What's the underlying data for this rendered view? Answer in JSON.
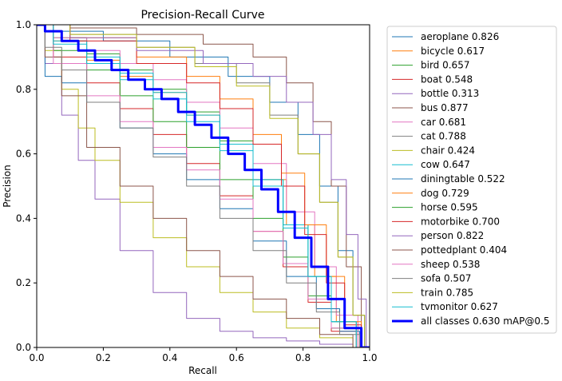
{
  "chart_data": {
    "type": "line",
    "title": "Precision-Recall Curve",
    "xlabel": "Recall",
    "ylabel": "Precision",
    "xlim": [
      0.0,
      1.0
    ],
    "ylim": [
      0.0,
      1.0
    ],
    "xticks": [
      "0.0",
      "0.2",
      "0.4",
      "0.6",
      "0.8",
      "1.0"
    ],
    "yticks": [
      "0.0",
      "0.2",
      "0.4",
      "0.6",
      "0.8",
      "1.0"
    ],
    "grid": false,
    "legend_position": "outside-right",
    "series": [
      {
        "name": "aeroplane 0.826",
        "color": "#1f77b4",
        "x": [
          0,
          0.1,
          0.3,
          0.5,
          0.65,
          0.75,
          0.82,
          0.88,
          0.93,
          0.97,
          1.0
        ],
        "y": [
          1.0,
          0.98,
          0.95,
          0.9,
          0.84,
          0.76,
          0.66,
          0.5,
          0.3,
          0.1,
          0
        ]
      },
      {
        "name": "bicycle 0.617",
        "color": "#ff7f0e",
        "x": [
          0,
          0.1,
          0.2,
          0.3,
          0.4,
          0.5,
          0.6,
          0.7,
          0.8,
          0.87,
          0.93,
          1.0
        ],
        "y": [
          1.0,
          0.95,
          0.89,
          0.84,
          0.79,
          0.72,
          0.63,
          0.52,
          0.38,
          0.22,
          0.08,
          0
        ]
      },
      {
        "name": "bird 0.657",
        "color": "#2ca02c",
        "x": [
          0,
          0.1,
          0.2,
          0.3,
          0.4,
          0.5,
          0.6,
          0.7,
          0.78,
          0.85,
          0.92,
          1.0
        ],
        "y": [
          1.0,
          0.96,
          0.91,
          0.86,
          0.8,
          0.73,
          0.64,
          0.52,
          0.38,
          0.22,
          0.08,
          0
        ]
      },
      {
        "name": "boat 0.548",
        "color": "#d62728",
        "x": [
          0,
          0.1,
          0.2,
          0.3,
          0.4,
          0.5,
          0.6,
          0.7,
          0.78,
          0.85,
          0.92,
          1.0
        ],
        "y": [
          1.0,
          0.9,
          0.82,
          0.74,
          0.66,
          0.57,
          0.47,
          0.36,
          0.25,
          0.14,
          0.05,
          0
        ]
      },
      {
        "name": "bottle 0.313",
        "color": "#9467bd",
        "x": [
          0,
          0.05,
          0.1,
          0.15,
          0.2,
          0.3,
          0.4,
          0.5,
          0.6,
          0.7,
          0.8,
          0.9,
          1.0
        ],
        "y": [
          1.0,
          0.88,
          0.72,
          0.58,
          0.46,
          0.3,
          0.17,
          0.09,
          0.05,
          0.03,
          0.02,
          0.01,
          0
        ]
      },
      {
        "name": "bus 0.877",
        "color": "#8c564b",
        "x": [
          0,
          0.2,
          0.4,
          0.6,
          0.7,
          0.8,
          0.86,
          0.91,
          0.95,
          1.0
        ],
        "y": [
          1.0,
          0.99,
          0.97,
          0.94,
          0.9,
          0.82,
          0.7,
          0.5,
          0.25,
          0
        ]
      },
      {
        "name": "car 0.681",
        "color": "#e377c2",
        "x": [
          0,
          0.1,
          0.2,
          0.3,
          0.4,
          0.5,
          0.6,
          0.7,
          0.8,
          0.87,
          0.93,
          1.0
        ],
        "y": [
          1.0,
          0.96,
          0.92,
          0.88,
          0.83,
          0.76,
          0.68,
          0.57,
          0.42,
          0.25,
          0.1,
          0
        ]
      },
      {
        "name": "cat 0.788",
        "color": "#7f7f7f",
        "x": [
          0,
          0.2,
          0.4,
          0.55,
          0.65,
          0.75,
          0.82,
          0.88,
          0.93,
          0.97,
          1.0
        ],
        "y": [
          1.0,
          0.97,
          0.93,
          0.88,
          0.82,
          0.72,
          0.6,
          0.45,
          0.28,
          0.1,
          0
        ]
      },
      {
        "name": "chair 0.424",
        "color": "#bcbd22",
        "x": [
          0,
          0.05,
          0.1,
          0.15,
          0.2,
          0.3,
          0.4,
          0.5,
          0.6,
          0.7,
          0.8,
          0.9,
          1.0
        ],
        "y": [
          1.0,
          0.92,
          0.8,
          0.68,
          0.58,
          0.45,
          0.34,
          0.25,
          0.17,
          0.11,
          0.06,
          0.03,
          0
        ]
      },
      {
        "name": "cow 0.647",
        "color": "#17becf",
        "x": [
          0,
          0.1,
          0.2,
          0.3,
          0.4,
          0.5,
          0.6,
          0.7,
          0.78,
          0.85,
          0.92,
          1.0
        ],
        "y": [
          1.0,
          0.95,
          0.9,
          0.85,
          0.79,
          0.72,
          0.63,
          0.52,
          0.38,
          0.22,
          0.08,
          0
        ]
      },
      {
        "name": "diningtable 0.522",
        "color": "#1f77b4",
        "x": [
          0,
          0.05,
          0.1,
          0.2,
          0.3,
          0.4,
          0.5,
          0.6,
          0.7,
          0.8,
          0.88,
          0.94,
          1.0
        ],
        "y": [
          1.0,
          0.84,
          0.82,
          0.76,
          0.68,
          0.6,
          0.52,
          0.43,
          0.33,
          0.22,
          0.12,
          0.05,
          0
        ]
      },
      {
        "name": "dog 0.729",
        "color": "#ff7f0e",
        "x": [
          0,
          0.2,
          0.4,
          0.5,
          0.6,
          0.7,
          0.77,
          0.84,
          0.9,
          0.95,
          1.0
        ],
        "y": [
          1.0,
          0.96,
          0.9,
          0.84,
          0.77,
          0.66,
          0.54,
          0.38,
          0.22,
          0.08,
          0
        ]
      },
      {
        "name": "horse 0.595",
        "color": "#2ca02c",
        "x": [
          0,
          0.1,
          0.2,
          0.3,
          0.4,
          0.5,
          0.6,
          0.7,
          0.78,
          0.85,
          0.92,
          1.0
        ],
        "y": [
          1.0,
          0.92,
          0.86,
          0.78,
          0.7,
          0.62,
          0.52,
          0.4,
          0.28,
          0.16,
          0.06,
          0
        ]
      },
      {
        "name": "motorbike 0.700",
        "color": "#d62728",
        "x": [
          0,
          0.2,
          0.4,
          0.5,
          0.6,
          0.7,
          0.77,
          0.84,
          0.9,
          0.95,
          1.0
        ],
        "y": [
          1.0,
          0.95,
          0.88,
          0.82,
          0.74,
          0.63,
          0.5,
          0.35,
          0.2,
          0.07,
          0
        ]
      },
      {
        "name": "person 0.822",
        "color": "#9467bd",
        "x": [
          0,
          0.2,
          0.4,
          0.6,
          0.7,
          0.8,
          0.86,
          0.91,
          0.95,
          0.98,
          1.0
        ],
        "y": [
          1.0,
          0.96,
          0.92,
          0.88,
          0.84,
          0.76,
          0.66,
          0.52,
          0.35,
          0.15,
          0
        ]
      },
      {
        "name": "pottedplant 0.404",
        "color": "#8c564b",
        "x": [
          0,
          0.05,
          0.1,
          0.2,
          0.3,
          0.4,
          0.5,
          0.6,
          0.7,
          0.8,
          0.9,
          1.0
        ],
        "y": [
          1.0,
          0.9,
          0.78,
          0.62,
          0.5,
          0.4,
          0.3,
          0.22,
          0.15,
          0.09,
          0.04,
          0
        ]
      },
      {
        "name": "sheep 0.538",
        "color": "#e377c2",
        "x": [
          0,
          0.1,
          0.2,
          0.3,
          0.4,
          0.5,
          0.6,
          0.7,
          0.78,
          0.85,
          0.92,
          1.0
        ],
        "y": [
          1.0,
          0.88,
          0.78,
          0.7,
          0.62,
          0.55,
          0.46,
          0.36,
          0.26,
          0.15,
          0.06,
          0
        ]
      },
      {
        "name": "sofa 0.507",
        "color": "#7f7f7f",
        "x": [
          0,
          0.05,
          0.1,
          0.2,
          0.3,
          0.4,
          0.5,
          0.6,
          0.7,
          0.8,
          0.88,
          0.94,
          1.0
        ],
        "y": [
          1.0,
          0.93,
          0.86,
          0.76,
          0.68,
          0.59,
          0.5,
          0.4,
          0.3,
          0.2,
          0.11,
          0.04,
          0
        ]
      },
      {
        "name": "train 0.785",
        "color": "#bcbd22",
        "x": [
          0,
          0.2,
          0.4,
          0.55,
          0.65,
          0.75,
          0.82,
          0.88,
          0.93,
          0.97,
          1.0
        ],
        "y": [
          1.0,
          0.97,
          0.93,
          0.87,
          0.81,
          0.71,
          0.6,
          0.45,
          0.28,
          0.1,
          0
        ]
      },
      {
        "name": "tvmonitor 0.627",
        "color": "#17becf",
        "x": [
          0,
          0.1,
          0.2,
          0.3,
          0.4,
          0.5,
          0.6,
          0.7,
          0.78,
          0.85,
          0.92,
          1.0
        ],
        "y": [
          1.0,
          0.94,
          0.88,
          0.83,
          0.77,
          0.7,
          0.61,
          0.5,
          0.37,
          0.22,
          0.08,
          0
        ]
      },
      {
        "name": "all classes 0.630 mAP@0.5",
        "color": "#0000ff",
        "bold": true,
        "x": [
          0,
          0.05,
          0.1,
          0.15,
          0.2,
          0.25,
          0.3,
          0.35,
          0.4,
          0.45,
          0.5,
          0.55,
          0.6,
          0.65,
          0.7,
          0.75,
          0.8,
          0.85,
          0.9,
          0.95,
          1.0
        ],
        "y": [
          1.0,
          0.98,
          0.95,
          0.92,
          0.89,
          0.86,
          0.83,
          0.8,
          0.77,
          0.73,
          0.69,
          0.65,
          0.6,
          0.55,
          0.49,
          0.42,
          0.34,
          0.25,
          0.15,
          0.06,
          0
        ]
      }
    ]
  }
}
